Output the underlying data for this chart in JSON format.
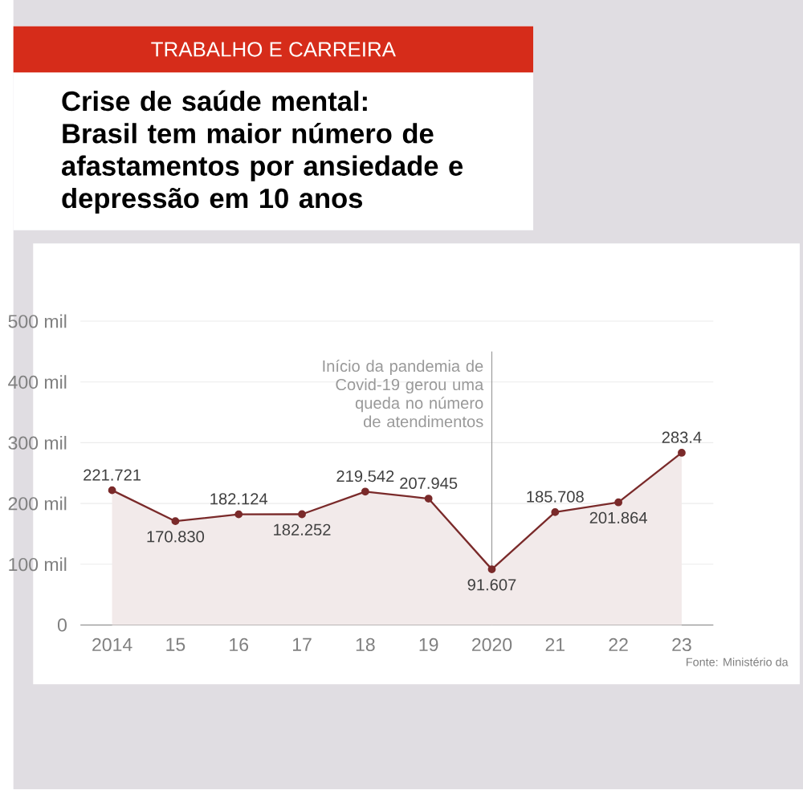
{
  "chart_data": {
    "type": "area",
    "subtitle": "TRABALHO E CARREIRA",
    "title": "Crise de saúde mental: Brasil tem maior número de afastamentos por ansiedade e depressão em 10 anos",
    "categories": [
      "2014",
      "15",
      "16",
      "17",
      "18",
      "19",
      "2020",
      "21",
      "22",
      "23"
    ],
    "values": [
      221.721,
      170.83,
      182.124,
      182.252,
      219.542,
      207.945,
      91.607,
      185.708,
      201.864,
      283.4
    ],
    "value_labels": [
      "221.721",
      "170.830",
      "182.124",
      "182.252",
      "219.542",
      "207.945",
      "91.607",
      "185.708",
      "201.864",
      "283.4"
    ],
    "color": "#7a2a2a",
    "ylim": [
      0,
      500
    ],
    "yticks": [
      0,
      {
        "value": 100,
        "label": "100 mil"
      },
      {
        "value": 200,
        "label": "200 mil"
      },
      {
        "value": 300,
        "label": "300 mil"
      },
      {
        "value": 400,
        "label": "400 mil"
      },
      {
        "value": 500,
        "label": "500 mil"
      }
    ],
    "grid": "y",
    "marker": "circle",
    "ref_lines": [
      {
        "axis": "x",
        "value": "2020",
        "label": "Início da pandemia de Covid-19 gerou uma queda no número de atendimentos",
        "color": "#999999"
      }
    ],
    "annotations": [
      "Fonte: Ministério da"
    ]
  }
}
